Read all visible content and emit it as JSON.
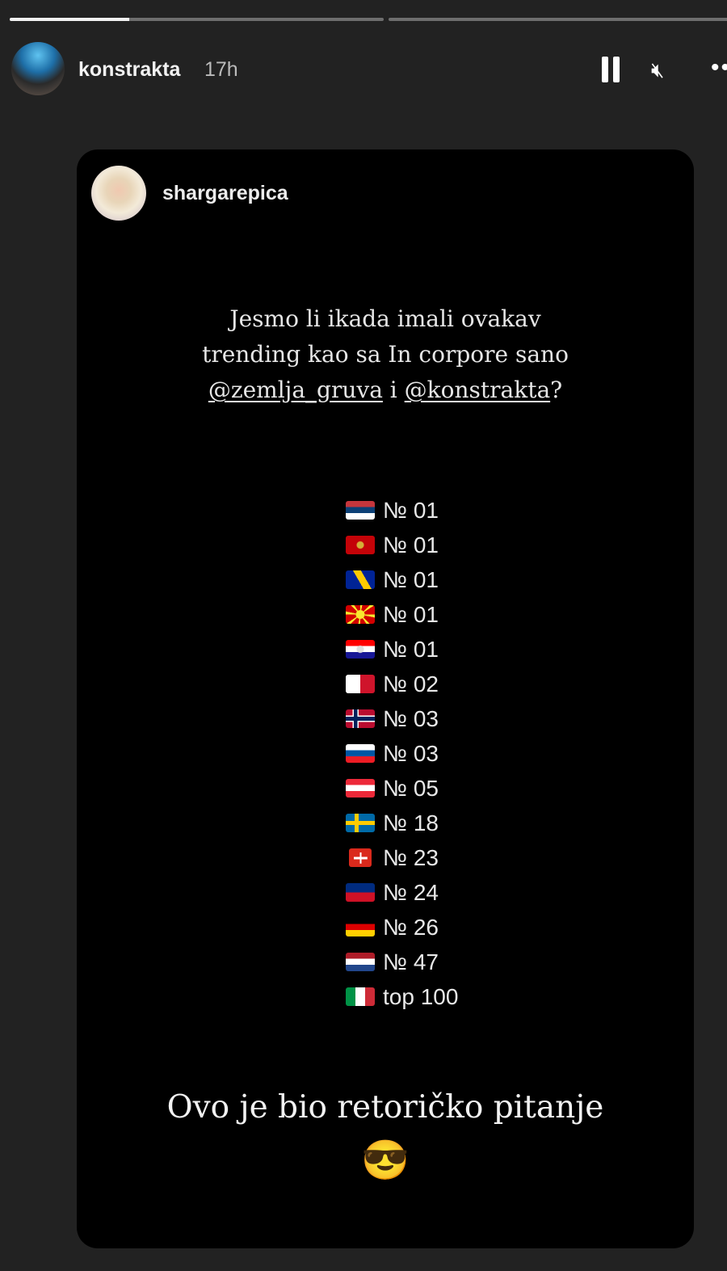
{
  "story_progress": [
    {
      "fraction": 0.32
    },
    {
      "fraction": 0
    },
    {
      "fraction": 0
    }
  ],
  "header": {
    "username": "konstrakta",
    "time": "17h",
    "pause_icon": "pause-icon",
    "mute_icon": "muted-speaker-icon",
    "more_icon": "more-icon",
    "more_label": "••"
  },
  "shared_post": {
    "username": "shargarepica",
    "question": {
      "line1": "Jesmo li ikada imali ovakav",
      "line2": "trending kao sa In corpore sano",
      "mention1": "@zemlja_gruva",
      "conj": " i ",
      "mention2": "@konstrakta",
      "end": "?"
    },
    "rankings": [
      {
        "country": "Serbia",
        "rank": "№ 01"
      },
      {
        "country": "Montenegro",
        "rank": "№ 01"
      },
      {
        "country": "Bosnia and Herzegovina",
        "rank": "№ 01"
      },
      {
        "country": "North Macedonia",
        "rank": "№ 01"
      },
      {
        "country": "Croatia",
        "rank": "№ 01"
      },
      {
        "country": "Malta",
        "rank": "№ 02"
      },
      {
        "country": "Norway",
        "rank": "№ 03"
      },
      {
        "country": "Slovenia",
        "rank": "№ 03"
      },
      {
        "country": "Austria",
        "rank": "№ 05"
      },
      {
        "country": "Sweden",
        "rank": "№ 18"
      },
      {
        "country": "Switzerland",
        "rank": "№ 23"
      },
      {
        "country": "Liechtenstein",
        "rank": "№ 24"
      },
      {
        "country": "Germany",
        "rank": "№ 26"
      },
      {
        "country": "Netherlands",
        "rank": "№ 47"
      },
      {
        "country": "Italy",
        "rank": "top 100"
      }
    ],
    "closing": "Ovo je bio retoričko pitanje",
    "emoji": "😎"
  }
}
